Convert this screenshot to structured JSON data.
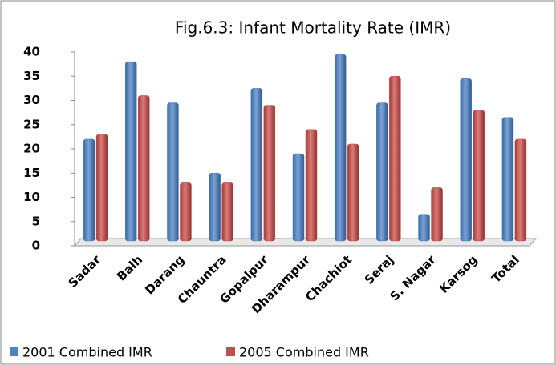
{
  "chart_data": {
    "type": "bar",
    "title": "Fig.6.3: Infant Mortality Rate (IMR)",
    "categories": [
      "Sadar",
      "Balh",
      "Darang",
      "Chauntra",
      "Gopalpur",
      "Dharampur",
      "Chachiot",
      "Seraj",
      "S. Nagar",
      "Karsog",
      "Total"
    ],
    "series": [
      {
        "name": "2001 Combined IMR",
        "color": "#4f81bd",
        "values": [
          22,
          38,
          29.5,
          15,
          32.5,
          19,
          39.5,
          29.5,
          6.5,
          34.5,
          26.5
        ]
      },
      {
        "name": "2005 Combined IMR",
        "color": "#c0504d",
        "values": [
          23,
          31,
          13,
          13,
          29,
          24,
          21,
          35,
          12,
          28,
          22
        ]
      }
    ],
    "ylim": [
      0,
      40
    ],
    "yticks": [
      0,
      5,
      10,
      15,
      20,
      25,
      30,
      35,
      40
    ],
    "grid": false,
    "legend": "bottom"
  }
}
